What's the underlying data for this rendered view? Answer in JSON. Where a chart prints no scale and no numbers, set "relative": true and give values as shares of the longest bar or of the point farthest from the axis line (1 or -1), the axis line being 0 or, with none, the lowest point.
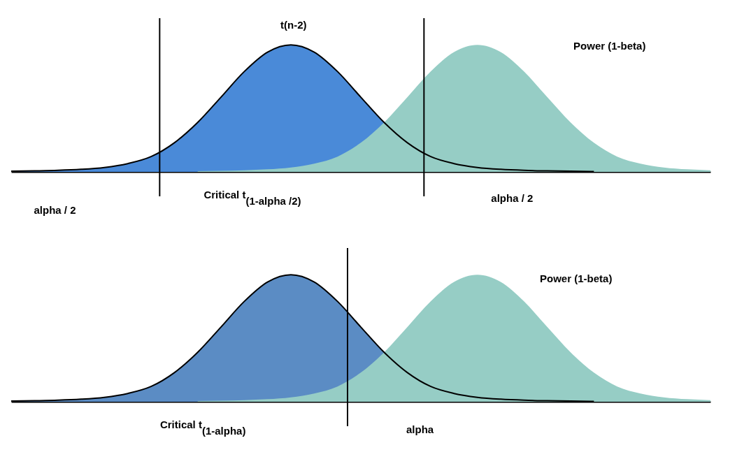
{
  "chart_data": [
    {
      "type": "area",
      "relative": true,
      "tick_labels": false,
      "categories": [
        null,
        null,
        null,
        null,
        null,
        null,
        null,
        null,
        null,
        null,
        null,
        null,
        null,
        null,
        null,
        null,
        null,
        null,
        null,
        null,
        null,
        null,
        null,
        null,
        null,
        null,
        null,
        null,
        null,
        null,
        null
      ],
      "series": [
        {
          "color": "#4a8ad8",
          "values": [
            0.005,
            0.008,
            0.012,
            0.02,
            0.035,
            0.065,
            0.12,
            0.229,
            0.389,
            0.588,
            0.79,
            0.943,
            1,
            0.943,
            0.79,
            0.588,
            0.389,
            0.229,
            0.12,
            0.065,
            0.035,
            0.02,
            0.012,
            0.008,
            0.005,
            0.003,
            null,
            null,
            null,
            null,
            null
          ]
        },
        {
          "color": "#96cdc5",
          "values": [
            null,
            null,
            null,
            null,
            null,
            null,
            null,
            null,
            0.005,
            0.008,
            0.012,
            0.02,
            0.035,
            0.065,
            0.12,
            0.229,
            0.389,
            0.588,
            0.79,
            0.943,
            1,
            0.943,
            0.79,
            0.588,
            0.389,
            0.229,
            0.12,
            0.065,
            0.035,
            0.02,
            0.012
          ]
        }
      ],
      "annotations": [
        "t(n-2)",
        "Power (1-beta)",
        "alpha / 2",
        "Critical t$_{(1-alpha /2)}$",
        "alpha / 2"
      ]
    },
    {
      "type": "area",
      "relative": true,
      "tick_labels": false,
      "categories": [
        null,
        null,
        null,
        null,
        null,
        null,
        null,
        null,
        null,
        null,
        null,
        null,
        null,
        null,
        null,
        null,
        null,
        null,
        null,
        null,
        null,
        null,
        null,
        null,
        null,
        null,
        null,
        null,
        null,
        null,
        null
      ],
      "series": [
        {
          "color": "#5b8cc4",
          "values": [
            0.005,
            0.008,
            0.012,
            0.02,
            0.035,
            0.065,
            0.12,
            0.229,
            0.389,
            0.588,
            0.79,
            0.943,
            1,
            0.943,
            0.79,
            0.588,
            0.389,
            0.229,
            0.12,
            0.065,
            0.035,
            0.02,
            0.012,
            0.008,
            0.005,
            0.003,
            null,
            null,
            null,
            null,
            null
          ]
        },
        {
          "color": "#96cdc5",
          "values": [
            null,
            null,
            null,
            null,
            null,
            null,
            null,
            null,
            0.005,
            0.008,
            0.012,
            0.02,
            0.035,
            0.065,
            0.12,
            0.229,
            0.389,
            0.588,
            0.79,
            0.943,
            1,
            0.943,
            0.79,
            0.588,
            0.389,
            0.229,
            0.12,
            0.065,
            0.035,
            0.02,
            0.012
          ]
        }
      ],
      "annotations": [
        "Power (1-beta)",
        "Critical t$_{(1-alpha)}$",
        "alpha"
      ]
    }
  ]
}
